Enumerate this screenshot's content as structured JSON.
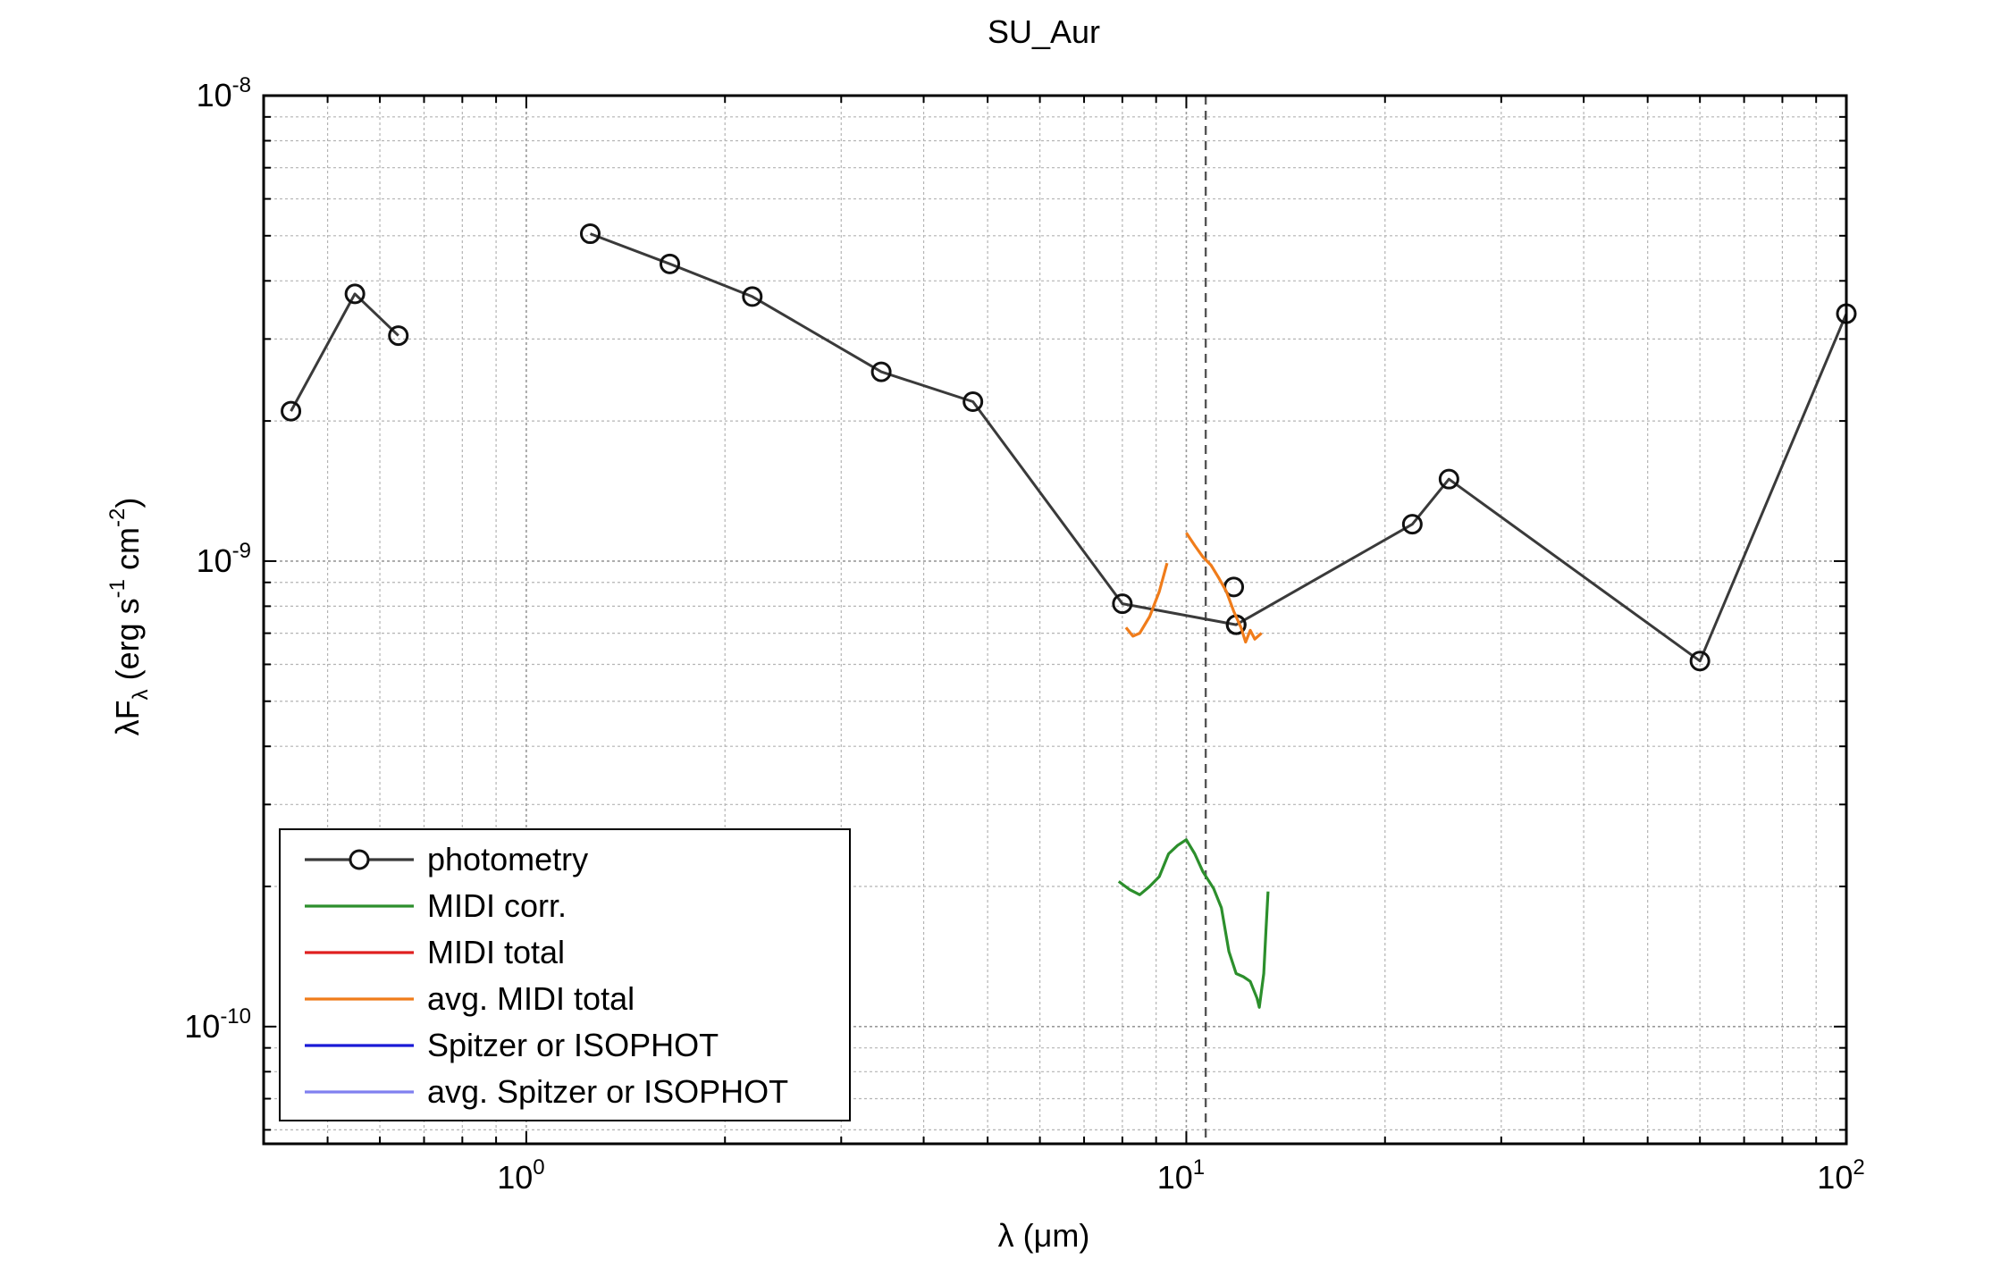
{
  "chart_data": {
    "type": "line",
    "title": "SU_Aur",
    "xlabel": {
      "base": "λ (",
      "unit": "μm",
      "close": ")"
    },
    "ylabel": {
      "lead": "λF",
      "sub": "λ",
      "mid": " (erg s",
      "e1": "-1",
      "mid2": " cm",
      "e2": "-2",
      "end": ")"
    },
    "x_scale": "log",
    "y_scale": "log",
    "xlim": [
      0.4,
      100
    ],
    "ylim": [
      5.6e-11,
      1e-08
    ],
    "grid": true,
    "x_ticks": [
      {
        "base": "10",
        "exp": "0",
        "value": 1
      },
      {
        "base": "10",
        "exp": "1",
        "value": 10
      },
      {
        "base": "10",
        "exp": "2",
        "value": 100
      }
    ],
    "y_ticks": [
      {
        "base": "10",
        "exp": "-8",
        "value": 1e-08
      },
      {
        "base": "10",
        "exp": "-9",
        "value": 1e-09
      },
      {
        "base": "10",
        "exp": "-10",
        "value": 1e-10
      }
    ],
    "vline_x": 10.7,
    "legend_position": "bottom-left",
    "series": [
      {
        "name": "photometry",
        "color": "#3a3a3a",
        "marker": "circle",
        "segments": [
          [
            [
              0.44,
              2.1e-09
            ],
            [
              0.55,
              3.75e-09
            ],
            [
              0.64,
              3.05e-09
            ]
          ],
          [
            [
              1.25,
              5.05e-09
            ],
            [
              1.65,
              4.35e-09
            ],
            [
              2.2,
              3.7e-09
            ],
            [
              3.45,
              2.55e-09
            ],
            [
              4.75,
              2.2e-09
            ],
            [
              8.0,
              8.1e-10
            ],
            [
              11.9,
              7.3e-10
            ],
            [
              22.0,
              1.2e-09
            ],
            [
              25.0,
              1.5e-09
            ],
            [
              60.0,
              6.1e-10
            ],
            [
              100.0,
              3.4e-09
            ]
          ]
        ],
        "extra_points": [
          [
            11.8,
            8.8e-10
          ],
          [
            11.9,
            7.3e-10
          ]
        ]
      },
      {
        "name": "MIDI corr.",
        "color": "#2c8f2c",
        "segments": [
          [
            [
              7.9,
              2.05e-10
            ],
            [
              8.2,
              1.97e-10
            ],
            [
              8.5,
              1.92e-10
            ],
            [
              8.8,
              2e-10
            ],
            [
              9.1,
              2.1e-10
            ],
            [
              9.4,
              2.35e-10
            ],
            [
              9.7,
              2.45e-10
            ],
            [
              10.0,
              2.52e-10
            ],
            [
              10.3,
              2.35e-10
            ],
            [
              10.6,
              2.15e-10
            ],
            [
              11.0,
              1.98e-10
            ],
            [
              11.3,
              1.8e-10
            ],
            [
              11.6,
              1.45e-10
            ],
            [
              11.9,
              1.3e-10
            ],
            [
              12.2,
              1.28e-10
            ],
            [
              12.5,
              1.25e-10
            ],
            [
              12.8,
              1.15e-10
            ],
            [
              12.9,
              1.1e-10
            ],
            [
              13.1,
              1.3e-10
            ],
            [
              13.2,
              1.6e-10
            ],
            [
              13.3,
              1.95e-10
            ]
          ]
        ]
      },
      {
        "name": "MIDI total",
        "color": "#e02020",
        "segments": []
      },
      {
        "name": "avg. MIDI total",
        "color": "#f07c1a",
        "segments": [
          [
            [
              8.1,
              7.2e-10
            ],
            [
              8.3,
              6.9e-10
            ],
            [
              8.5,
              7e-10
            ],
            [
              8.8,
              7.6e-10
            ],
            [
              9.1,
              8.6e-10
            ],
            [
              9.35,
              9.9e-10
            ]
          ],
          [
            [
              10.0,
              1.15e-09
            ],
            [
              10.3,
              1.08e-09
            ],
            [
              10.6,
              1.02e-09
            ],
            [
              10.9,
              9.8e-10
            ],
            [
              11.2,
              9.2e-10
            ],
            [
              11.5,
              8.6e-10
            ],
            [
              11.8,
              7.8e-10
            ],
            [
              12.1,
              7.2e-10
            ],
            [
              12.3,
              6.7e-10
            ],
            [
              12.5,
              7.1e-10
            ],
            [
              12.7,
              6.8e-10
            ],
            [
              13.0,
              7e-10
            ]
          ]
        ]
      },
      {
        "name": "Spitzer or ISOPHOT",
        "color": "#1a1ad6",
        "segments": []
      },
      {
        "name": "avg. Spitzer or ISOPHOT",
        "color": "#8080f0",
        "segments": []
      }
    ]
  }
}
